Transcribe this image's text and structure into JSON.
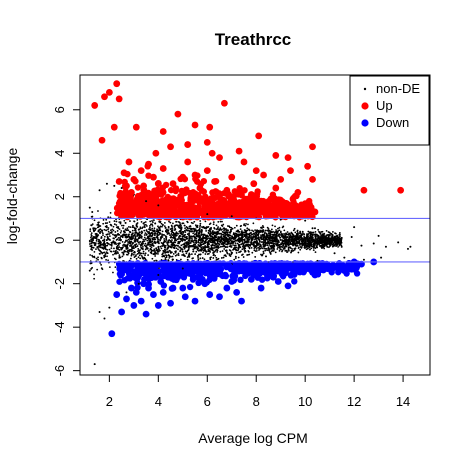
{
  "chart_data": {
    "type": "scatter",
    "title": "Treathrcc",
    "xlabel": "Average log CPM",
    "ylabel": "log-fold-change",
    "xlim": [
      0.8,
      15.1
    ],
    "ylim": [
      -6.2,
      7.6
    ],
    "x_ticks": [
      2,
      4,
      6,
      8,
      10,
      12,
      14
    ],
    "y_ticks": [
      -6,
      -4,
      -2,
      0,
      2,
      4,
      6
    ],
    "x_tick_labels": [
      "2",
      "4",
      "6",
      "8",
      "10",
      "12",
      "14"
    ],
    "y_tick_labels": [
      "-6",
      "-4",
      "-2",
      "0",
      "2",
      "4",
      "6"
    ],
    "hlines": [
      1,
      -1
    ],
    "hline_color": "#6b6bff",
    "legend_position": "top-right",
    "grid": false,
    "series": [
      {
        "name": "non-DE",
        "color": "#000000",
        "marker": "dot",
        "points": [
          [
            1.4,
            -5.7
          ],
          [
            1.6,
            -3.3
          ],
          [
            1.8,
            -3.6
          ],
          [
            2.0,
            -3.1
          ],
          [
            1.2,
            1.5
          ],
          [
            1.3,
            1.3
          ],
          [
            1.2,
            -1.4
          ],
          [
            1.6,
            2.3
          ],
          [
            1.9,
            2.6
          ],
          [
            2.2,
            2.5
          ],
          [
            2.5,
            2.4
          ],
          [
            3.0,
            2.1
          ],
          [
            3.5,
            1.8
          ],
          [
            4.0,
            1.6
          ],
          [
            2.3,
            -2.6
          ],
          [
            2.7,
            -2.4
          ],
          [
            3.2,
            -2.0
          ],
          [
            4.0,
            -1.6
          ],
          [
            5.0,
            -1.3
          ],
          [
            6.0,
            1.2
          ],
          [
            7.0,
            1.1
          ],
          [
            8.0,
            1.0
          ],
          [
            9.0,
            0.95
          ],
          [
            10.0,
            0.9
          ],
          [
            7.0,
            -1.1
          ],
          [
            8.5,
            -1.0
          ],
          [
            9.5,
            -1.0
          ],
          [
            10.5,
            -0.95
          ],
          [
            10.4,
            0.55
          ],
          [
            11.0,
            0.35
          ],
          [
            11.4,
            0.25
          ],
          [
            11.9,
            0.15
          ],
          [
            12.3,
            -0.25
          ],
          [
            12.8,
            -0.15
          ],
          [
            13.3,
            -0.3
          ],
          [
            14.3,
            -0.3
          ],
          [
            11.6,
            -0.8
          ],
          [
            12.4,
            -0.9
          ],
          [
            13.1,
            -0.8
          ],
          [
            12.0,
            0.6
          ],
          [
            13.0,
            0.2
          ],
          [
            14.2,
            -0.4
          ],
          [
            10.3,
            0.55
          ],
          [
            11.2,
            -0.6
          ],
          [
            13.8,
            -0.1
          ]
        ]
      },
      {
        "name": "Up",
        "color": "#ff0000",
        "marker": "circle",
        "points": [
          [
            1.4,
            6.2
          ],
          [
            1.8,
            6.6
          ],
          [
            2.0,
            6.8
          ],
          [
            2.3,
            7.2
          ],
          [
            2.4,
            6.5
          ],
          [
            1.7,
            4.6
          ],
          [
            2.2,
            5.2
          ],
          [
            3.1,
            5.2
          ],
          [
            4.2,
            5.0
          ],
          [
            4.8,
            5.8
          ],
          [
            5.5,
            5.3
          ],
          [
            6.1,
            5.2
          ],
          [
            6.7,
            6.3
          ],
          [
            3.9,
            4.0
          ],
          [
            4.5,
            4.3
          ],
          [
            5.2,
            4.4
          ],
          [
            6.0,
            4.5
          ],
          [
            7.3,
            4.1
          ],
          [
            8.1,
            4.8
          ],
          [
            8.8,
            3.9
          ],
          [
            9.3,
            3.8
          ],
          [
            10.3,
            4.3
          ],
          [
            10.1,
            3.4
          ],
          [
            9.4,
            3.2
          ],
          [
            8.3,
            3.0
          ],
          [
            7.5,
            3.6
          ],
          [
            3.6,
            3.5
          ],
          [
            5.2,
            3.6
          ],
          [
            6.5,
            3.8
          ],
          [
            10.3,
            2.8
          ],
          [
            10.4,
            1.3
          ],
          [
            12.4,
            2.3
          ],
          [
            13.9,
            2.3
          ],
          [
            2.4,
            2.7
          ],
          [
            2.6,
            3.1
          ],
          [
            3.0,
            2.8
          ],
          [
            3.4,
            2.5
          ],
          [
            3.8,
            2.9
          ],
          [
            4.6,
            2.6
          ],
          [
            5.7,
            2.4
          ],
          [
            6.8,
            2.3
          ],
          [
            7.8,
            2.1
          ],
          [
            8.6,
            1.9
          ],
          [
            9.6,
            1.6
          ],
          [
            9.9,
            1.5
          ],
          [
            9.2,
            1.7
          ],
          [
            8.2,
            1.8
          ],
          [
            4.9,
            1.8
          ],
          [
            5.9,
            1.6
          ],
          [
            7.2,
            1.4
          ],
          [
            3.9,
            2.0
          ],
          [
            2.9,
            2.2
          ],
          [
            2.7,
            2.5
          ],
          [
            3.3,
            3.2
          ],
          [
            4.2,
            3.3
          ],
          [
            5.5,
            3.0
          ],
          [
            6.3,
            2.7
          ],
          [
            7.0,
            2.9
          ],
          [
            7.9,
            2.6
          ],
          [
            8.8,
            2.4
          ],
          [
            9.7,
            2.2
          ],
          [
            5.0,
            2.9
          ],
          [
            6.0,
            3.2
          ],
          [
            4.0,
            2.6
          ],
          [
            3.5,
            2.0
          ],
          [
            6.5,
            2.0
          ],
          [
            7.5,
            1.8
          ],
          [
            8.4,
            1.5
          ],
          [
            5.3,
            1.5
          ],
          [
            4.5,
            1.9
          ],
          [
            6.9,
            1.6
          ],
          [
            9.0,
            2.8
          ],
          [
            8.0,
            3.2
          ],
          [
            6.2,
            4.0
          ],
          [
            2.8,
            3.6
          ]
        ]
      },
      {
        "name": "Down",
        "color": "#0000ff",
        "marker": "circle",
        "points": [
          [
            2.1,
            -4.3
          ],
          [
            2.5,
            -3.3
          ],
          [
            3.0,
            -3.0
          ],
          [
            3.5,
            -3.4
          ],
          [
            2.7,
            -2.7
          ],
          [
            3.3,
            -2.8
          ],
          [
            3.8,
            -2.5
          ],
          [
            4.0,
            -3.0
          ],
          [
            4.2,
            -2.4
          ],
          [
            4.5,
            -2.9
          ],
          [
            5.0,
            -2.2
          ],
          [
            5.5,
            -2.8
          ],
          [
            5.9,
            -2.0
          ],
          [
            6.5,
            -2.6
          ],
          [
            7.0,
            -1.9
          ],
          [
            7.2,
            -2.4
          ],
          [
            7.8,
            -1.8
          ],
          [
            8.2,
            -2.2
          ],
          [
            8.7,
            -1.7
          ],
          [
            9.2,
            -1.5
          ],
          [
            9.6,
            -1.4
          ],
          [
            10.1,
            -1.3
          ],
          [
            10.6,
            -1.3
          ],
          [
            11.0,
            -1.2
          ],
          [
            11.4,
            -1.1
          ],
          [
            11.8,
            -1.1
          ],
          [
            12.3,
            -1.1
          ],
          [
            12.8,
            -1.0
          ],
          [
            9.3,
            -2.1
          ],
          [
            7.4,
            -2.8
          ],
          [
            6.1,
            -2.5
          ],
          [
            5.1,
            -2.6
          ],
          [
            4.6,
            -2.2
          ],
          [
            3.6,
            -2.2
          ],
          [
            2.9,
            -2.2
          ],
          [
            8.3,
            -1.4
          ],
          [
            9.0,
            -1.2
          ],
          [
            7.5,
            -1.3
          ],
          [
            6.4,
            -1.5
          ],
          [
            5.4,
            -1.6
          ],
          [
            4.4,
            -1.7
          ],
          [
            3.4,
            -2.0
          ],
          [
            6.8,
            -2.2
          ],
          [
            7.9,
            -1.6
          ],
          [
            10.4,
            -1.6
          ],
          [
            11.6,
            -1.4
          ],
          [
            4.1,
            -1.9
          ],
          [
            5.8,
            -1.8
          ],
          [
            2.3,
            -2.5
          ],
          [
            3.1,
            -2.4
          ],
          [
            6.9,
            -1.2
          ],
          [
            8.9,
            -1.9
          ],
          [
            10.8,
            -1.2
          ],
          [
            12.0,
            -1.0
          ]
        ]
      }
    ]
  }
}
